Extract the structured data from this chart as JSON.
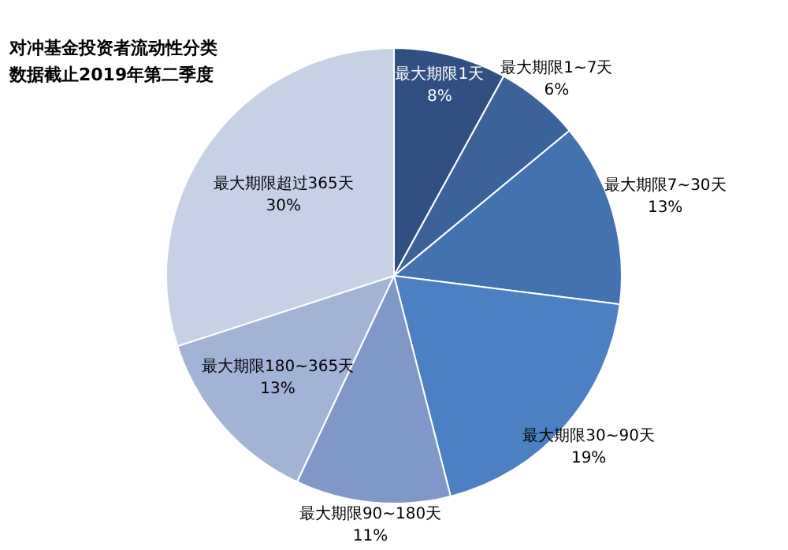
{
  "chart_data": {
    "type": "pie",
    "title": "对冲基金投资者流动性分类",
    "subtitle": "数据截止2019年第二季度",
    "categories": [
      "最大期限1天",
      "最大期限1~7天",
      "最大期限7~30天",
      "最大期限30~90天",
      "最大期限90~180天",
      "最大期限180~365天",
      "最大期限超过365天"
    ],
    "values": [
      8,
      6,
      13,
      19,
      11,
      13,
      30
    ],
    "value_labels": [
      "8%",
      "6%",
      "13%",
      "19%",
      "11%",
      "13%",
      "30%"
    ],
    "colors": [
      "#2f5080",
      "#3b6399",
      "#4472b0",
      "#4d80c2",
      "#7f98c8",
      "#a2b3d6",
      "#c6d1e6"
    ],
    "legend": false
  }
}
